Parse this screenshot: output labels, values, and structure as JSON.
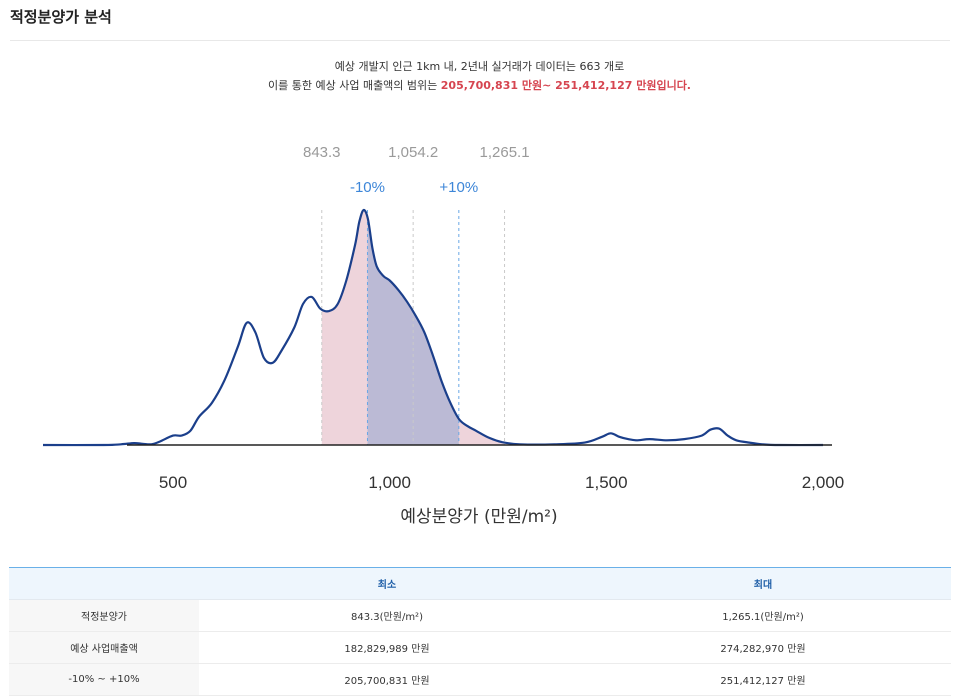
{
  "page": {
    "title": "적정분양가 분석"
  },
  "summary": {
    "line1": "예상 개발지 인근 1km 내, 2년내 실거래가 데이터는 663 개로",
    "line2_prefix": "이를 통한 예상 사업 매출액의 범위는 ",
    "line2_highlight": "205,700,831 만원~ 251,412,127 만원입니다."
  },
  "chart_data": {
    "type": "area",
    "xlabel": "예상분양가 (만원/m²)",
    "xlim": [
      200,
      2000
    ],
    "x_ticks": [
      500,
      1000,
      1500,
      2000
    ],
    "x_tick_labels": [
      "500",
      "1,000",
      "1,500",
      "2,000"
    ],
    "ylim": [
      0,
      1
    ],
    "markers": [
      {
        "label": "843.3",
        "x": 843.3
      },
      {
        "label": "1,054.2",
        "x": 1054.2
      },
      {
        "label": "1,265.1",
        "x": 1265.1
      }
    ],
    "pct_markers": [
      {
        "label": "-10%",
        "x": 948.8
      },
      {
        "label": "+10%",
        "x": 1159.6
      }
    ],
    "series": [
      {
        "x": [
          200,
          340,
          380,
          410,
          430,
          450,
          470,
          500,
          520,
          540,
          560,
          590,
          620,
          650,
          670,
          690,
          710,
          730,
          750,
          780,
          800,
          820,
          840,
          860,
          880,
          900,
          920,
          930,
          940,
          950,
          960,
          970,
          985,
          1000,
          1020,
          1040,
          1060,
          1080,
          1100,
          1120,
          1140,
          1160,
          1180,
          1200,
          1230,
          1260,
          1300,
          1380,
          1450,
          1490,
          1510,
          1530,
          1550,
          1570,
          1600,
          1640,
          1680,
          1720,
          1740,
          1760,
          1780,
          1800,
          1830,
          1860,
          1900,
          2000
        ],
        "y": [
          0,
          0,
          0.003,
          0.008,
          0.005,
          0.003,
          0.015,
          0.04,
          0.04,
          0.06,
          0.12,
          0.18,
          0.28,
          0.42,
          0.52,
          0.48,
          0.37,
          0.35,
          0.4,
          0.5,
          0.6,
          0.63,
          0.58,
          0.57,
          0.6,
          0.7,
          0.85,
          0.95,
          1.0,
          0.96,
          0.84,
          0.76,
          0.72,
          0.7,
          0.66,
          0.61,
          0.55,
          0.48,
          0.38,
          0.27,
          0.18,
          0.11,
          0.08,
          0.06,
          0.03,
          0.012,
          0.003,
          0.003,
          0.01,
          0.035,
          0.05,
          0.035,
          0.025,
          0.02,
          0.025,
          0.02,
          0.025,
          0.04,
          0.065,
          0.07,
          0.04,
          0.02,
          0.01,
          0.003,
          0,
          0
        ]
      }
    ],
    "colors": {
      "line": "#1b3f8b",
      "range_fill": "#e8c6cf",
      "inner_fill": "#aeb3d3",
      "marker_label": "#9a9a9a",
      "pct_label": "#3d86d8"
    }
  },
  "table": {
    "headers": [
      "",
      "최소",
      "최대"
    ],
    "rows": [
      {
        "label": "적정분양가",
        "min": "843.3(만원/m²)",
        "max": "1,265.1(만원/m²)"
      },
      {
        "label": "예상 사업매출액",
        "min": "182,829,989 만원",
        "max": "274,282,970 만원"
      },
      {
        "label": "-10% ~ +10%",
        "min": "205,700,831 만원",
        "max": "251,412,127 만원"
      }
    ]
  }
}
